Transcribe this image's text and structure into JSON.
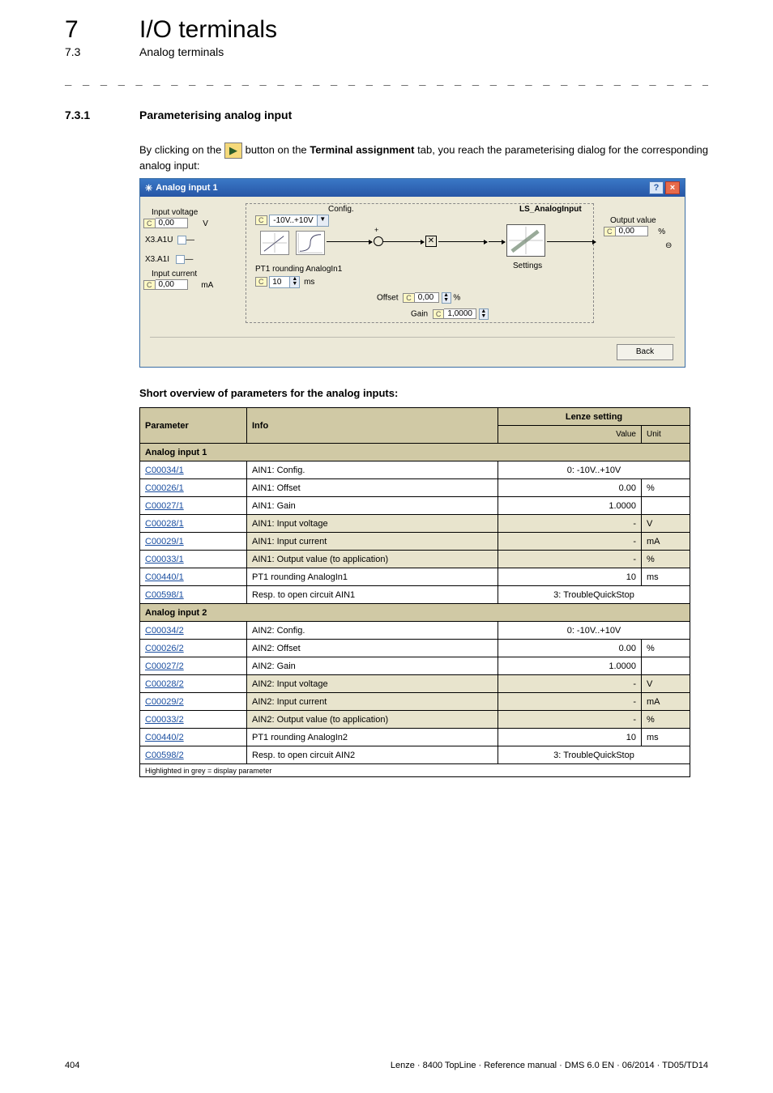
{
  "header": {
    "chapter_num": "7",
    "chapter_title": "I/O terminals",
    "section_num": "7.3",
    "section_title": "Analog terminals",
    "subsec_num": "7.3.1",
    "subsec_title": "Parameterising analog input"
  },
  "intro": {
    "p1_a": "By clicking on the ",
    "p1_b": " button on the ",
    "p1_bold": "Terminal assignment",
    "p1_c": "  tab, you reach the parameterising dialog for the corresponding analog input:"
  },
  "dlg": {
    "title": "Analog input 1",
    "help_btn": "?",
    "close_btn": "×",
    "config_label": "Config.",
    "config_value": "-10V..+10V",
    "ls_label": "LS_AnalogInput",
    "input_voltage_label": "Input voltage",
    "input_voltage_value": "0,00",
    "input_voltage_unit": "V",
    "x3a1u": "X3.A1U",
    "x3a1i": "X3.A1I",
    "input_current_label": "Input current",
    "input_current_value": "0,00",
    "input_current_unit": "mA",
    "pt1_label": "PT1 rounding AnalogIn1",
    "pt1_value": "10",
    "pt1_unit": "ms",
    "offset_label": "Offset",
    "offset_value": "0,00",
    "offset_unit": "%",
    "gain_label": "Gain",
    "gain_value": "1,0000",
    "output_value_label": "Output value",
    "output_value_value": "0,00",
    "output_value_unit": "%",
    "settings_label": "Settings",
    "back_btn": "Back"
  },
  "table": {
    "caption": "Short overview of parameters for the analog inputs:",
    "headers": {
      "param": "Parameter",
      "info": "Info",
      "lenze": "Lenze setting",
      "value": "Value",
      "unit": "Unit"
    },
    "group1": "Analog input 1",
    "group2": "Analog input 2",
    "rows1": [
      {
        "p": "C00034/1",
        "i": "AIN1: Config.",
        "v": "0: -10V..+10V",
        "u": "",
        "span": true
      },
      {
        "p": "C00026/1",
        "i": "AIN1: Offset",
        "v": "0.00",
        "u": "%"
      },
      {
        "p": "C00027/1",
        "i": "AIN1: Gain",
        "v": "1.0000",
        "u": ""
      },
      {
        "p": "C00028/1",
        "i": "AIN1: Input voltage",
        "v": "-",
        "u": "V",
        "grey": true
      },
      {
        "p": "C00029/1",
        "i": "AIN1: Input current",
        "v": "-",
        "u": "mA",
        "grey": true
      },
      {
        "p": "C00033/1",
        "i": "AIN1: Output value (to application)",
        "v": "-",
        "u": "%",
        "grey": true
      },
      {
        "p": "C00440/1",
        "i": "PT1 rounding AnalogIn1",
        "v": "10",
        "u": "ms"
      },
      {
        "p": "C00598/1",
        "i": "Resp. to open circuit AIN1",
        "v": "3: TroubleQuickStop",
        "u": "",
        "span": true
      }
    ],
    "rows2": [
      {
        "p": "C00034/2",
        "i": "AIN2: Config.",
        "v": "0: -10V..+10V",
        "u": "",
        "span": true
      },
      {
        "p": "C00026/2",
        "i": "AIN2: Offset",
        "v": "0.00",
        "u": "%"
      },
      {
        "p": "C00027/2",
        "i": "AIN2: Gain",
        "v": "1.0000",
        "u": ""
      },
      {
        "p": "C00028/2",
        "i": "AIN2: Input voltage",
        "v": "-",
        "u": "V",
        "grey": true
      },
      {
        "p": "C00029/2",
        "i": "AIN2: Input current",
        "v": "-",
        "u": "mA",
        "grey": true
      },
      {
        "p": "C00033/2",
        "i": "AIN2: Output value (to application)",
        "v": "-",
        "u": "%",
        "grey": true
      },
      {
        "p": "C00440/2",
        "i": "PT1 rounding AnalogIn2",
        "v": "10",
        "u": "ms"
      },
      {
        "p": "C00598/2",
        "i": "Resp. to open circuit AIN2",
        "v": "3: TroubleQuickStop",
        "u": "",
        "span": true
      }
    ],
    "footnote": "Highlighted in grey = display parameter"
  },
  "footer": {
    "page": "404",
    "text": "Lenze · 8400 TopLine · Reference manual · DMS 6.0 EN · 06/2014 · TD05/TD14"
  }
}
